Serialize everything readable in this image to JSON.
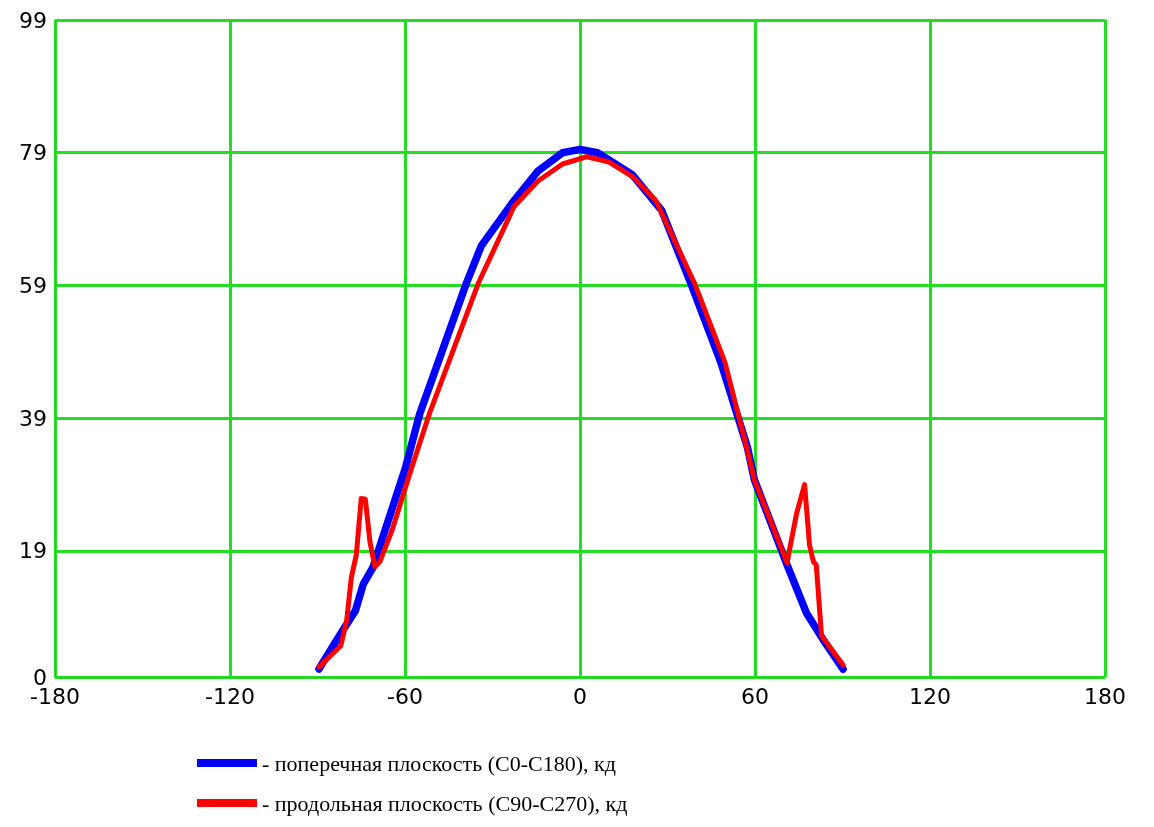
{
  "chart_data": {
    "type": "line",
    "xlim": [
      -180,
      180
    ],
    "xticks": [
      -180,
      -120,
      -60,
      0,
      60,
      120,
      180
    ],
    "ylim": [
      0,
      99
    ],
    "yticks": [
      0,
      19,
      39,
      59,
      79,
      99
    ],
    "grid": true,
    "legend": "bottom",
    "line_style": "solid",
    "marker": "none",
    "series": [
      {
        "name": "- поперечная плоскость (C0-C180), кд",
        "color": "#0000ff",
        "x": [
          -89.5,
          -83.4,
          -77,
          -74.3,
          -71,
          -65.2,
          -59.8,
          -55,
          -38.9,
          -33.8,
          -22.6,
          -14.5,
          -6,
          0,
          6,
          17.9,
          28,
          38.2,
          48.3,
          57.4,
          59.8,
          71,
          77.7,
          83.4,
          90.2
        ],
        "values": [
          1.2,
          5.6,
          10,
          14,
          16.5,
          24.3,
          31.6,
          39.6,
          59.4,
          65,
          71.8,
          76.2,
          79,
          79.5,
          79,
          75.7,
          70.3,
          59.1,
          47.4,
          34.6,
          29.7,
          16.9,
          9.6,
          5.6,
          1.2
        ]
      },
      {
        "name": "- продольная плоскость (C90-C270), кд",
        "color": "#ff0000",
        "x": [
          -89.5,
          -82,
          -80,
          -78.4,
          -76.7,
          -75,
          -73.6,
          -72,
          -70.3,
          -68.6,
          -64.2,
          -58.4,
          -51.7,
          -34.8,
          -22.6,
          -14.5,
          -6,
          2.4,
          10,
          18,
          26,
          39.5,
          49.7,
          57.4,
          59.8,
          71,
          72.6,
          74.3,
          77,
          78.7,
          80,
          81,
          82.8,
          90.2
        ],
        "values": [
          1.5,
          4.7,
          8.5,
          15,
          18.4,
          26.9,
          26.8,
          20.3,
          16.6,
          17.4,
          22.4,
          30.6,
          39.6,
          59.4,
          70.9,
          74.7,
          77.3,
          78.4,
          77.6,
          75.4,
          71.8,
          59.1,
          47.4,
          34.1,
          29.7,
          17.2,
          20.9,
          24.7,
          29,
          19.9,
          17.4,
          16.9,
          6.2,
          1.8
        ]
      }
    ]
  }
}
